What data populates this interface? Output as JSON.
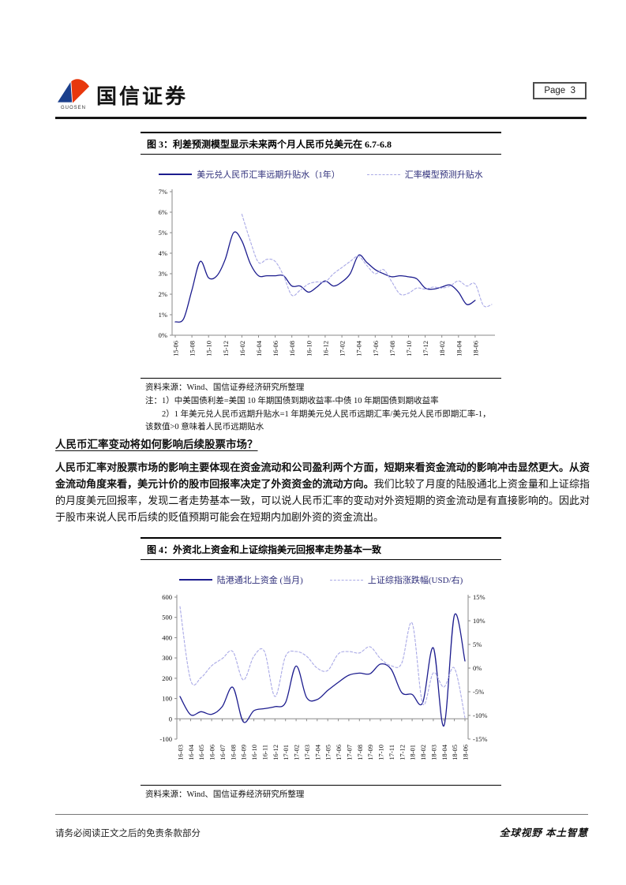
{
  "header": {
    "brand": "国信证券",
    "brand_sub": "GUOSEN",
    "logo_icon": "guosen-diamond-logo-icon",
    "page_label": "Page  3",
    "logo_blue": "#1b3f8c",
    "logo_red": "#e8380d"
  },
  "section": {
    "heading": "人民币汇率变动将如何影响后续股票市场？",
    "para_bold": "人民币汇率对股票市场的影响主要体现在资金流动和公司盈利两个方面，短期来看资金流动的影响冲击显然更大。从资金流动角度来看，美元计价的股市回报率决定了外资资金的流动方向。",
    "para_rest": "我们比较了月度的陆股通北上资金量和上证综指的月度美元回报率，发现二者走势基本一致，可以说人民币汇率的变动对外资短期的资金流动是有直接影响的。因此对于股市来说人民币后续的贬值预期可能会在短期内加剧外资的资金流出。"
  },
  "figures": {
    "fig3": {
      "source": "资料来源：Wind、国信证券经济研究所整理",
      "note1": "注：1）中美国债利差=美国 10 年期国债到期收益率-中债 10 年期国债到期收益率",
      "note2": "2）1 年美元兑人民币远期升贴水=1 年期美元兑人民币远期汇率/美元兑人民币即期汇率-1，该数值>0 意味着人民币远期贴水"
    },
    "fig4": {
      "source": "资料来源：Wind、国信证券经济研究所整理"
    }
  },
  "footer": {
    "left": "请务必阅读正文之后的免责条款部分",
    "right": "全球视野 本土智慧"
  },
  "chart_data": [
    {
      "type": "line",
      "title": "图 3：利差预测模型显示未来两个月人民币兑美元在 6.7-6.8",
      "categories": [
        "15-06",
        "15-07",
        "15-08",
        "15-09",
        "15-10",
        "15-11",
        "15-12",
        "16-01",
        "16-02",
        "16-03",
        "16-04",
        "16-05",
        "16-06",
        "16-07",
        "16-08",
        "16-09",
        "16-10",
        "16-11",
        "16-12",
        "17-01",
        "17-02",
        "17-03",
        "17-04",
        "17-05",
        "17-06",
        "17-07",
        "17-08",
        "17-09",
        "17-10",
        "17-11",
        "17-12",
        "18-01",
        "18-02",
        "18-03",
        "18-04",
        "18-05",
        "18-06"
      ],
      "x_label_every": 2,
      "x_extra": 2,
      "grid": false,
      "legend_position": "top",
      "y_left": {
        "min": 0,
        "max": 7,
        "ticks": [
          0,
          1,
          2,
          3,
          4,
          5,
          6,
          7
        ],
        "labels": [
          "0%",
          "1%",
          "2%",
          "3%",
          "4%",
          "5%",
          "6%",
          "7%"
        ]
      },
      "series": [
        {
          "name": "美元兑人民币汇率远期升贴水（1年）",
          "style": "solid",
          "color": "#1c1c8e",
          "axis": "left",
          "x_start": 0,
          "values": [
            0.65,
            0.8,
            2.2,
            3.6,
            2.8,
            2.9,
            3.7,
            5.0,
            4.6,
            3.5,
            2.9,
            2.9,
            2.9,
            2.9,
            2.4,
            2.4,
            2.1,
            2.35,
            2.65,
            2.4,
            2.6,
            3.0,
            3.9,
            3.55,
            3.2,
            3.0,
            2.85,
            2.9,
            2.85,
            2.75,
            2.3,
            2.25,
            2.35,
            2.45,
            2.1,
            1.5,
            1.7
          ]
        },
        {
          "name": "汇率模型预测升贴水",
          "style": "dashed",
          "color": "#a9a9e6",
          "axis": "left",
          "x_start": 8,
          "values": [
            5.9,
            4.6,
            3.55,
            3.7,
            3.6,
            2.9,
            1.95,
            2.2,
            2.5,
            2.6,
            2.6,
            3.0,
            3.3,
            3.6,
            3.85,
            3.4,
            3.0,
            3.2,
            2.6,
            2.0,
            2.05,
            2.3,
            2.25,
            2.35,
            2.3,
            2.4,
            2.65,
            2.4,
            2.5,
            1.45,
            1.5
          ]
        }
      ]
    },
    {
      "type": "line",
      "title": "图 4：外资北上资金和上证综指美元回报率走势基本一致",
      "categories": [
        "16-03",
        "16-04",
        "16-05",
        "16-06",
        "16-07",
        "16-08",
        "16-09",
        "16-10",
        "16-11",
        "16-12",
        "17-01",
        "17-02",
        "17-03",
        "17-04",
        "17-05",
        "17-06",
        "17-07",
        "17-08",
        "17-09",
        "17-10",
        "17-11",
        "17-12",
        "18-01",
        "18-02",
        "18-03",
        "18-04",
        "18-05",
        "18-06"
      ],
      "x_label_every": 1,
      "x_axis_at": 0,
      "grid": false,
      "legend_position": "top",
      "y_left": {
        "min": -100,
        "max": 600,
        "ticks": [
          -100,
          0,
          100,
          200,
          300,
          400,
          500,
          600
        ],
        "labels": [
          "-100",
          "0",
          "100",
          "200",
          "300",
          "400",
          "500",
          "600"
        ]
      },
      "y_right": {
        "min": -15,
        "max": 15,
        "ticks": [
          -15,
          -10,
          -5,
          0,
          5,
          10,
          15
        ],
        "labels": [
          "-15%",
          "-10%",
          "-5%",
          "0%",
          "5%",
          "10%",
          "15%"
        ]
      },
      "series": [
        {
          "name": "陆港通北上资金 (当月)",
          "style": "solid",
          "color": "#1c1c8e",
          "axis": "left",
          "x_start": 0,
          "values": [
            110,
            20,
            35,
            22,
            60,
            155,
            -15,
            40,
            50,
            60,
            80,
            260,
            105,
            95,
            140,
            180,
            215,
            225,
            222,
            270,
            245,
            130,
            120,
            80,
            350,
            -35,
            510,
            285
          ]
        },
        {
          "name": "上证综指涨跌幅(USD/右)",
          "style": "dashed",
          "color": "#a9a9e6",
          "axis": "right",
          "x_start": 0,
          "values": [
            13,
            -2.5,
            -2,
            0.5,
            2,
            3.5,
            -2.5,
            2.5,
            3.5,
            -6,
            2.5,
            3.5,
            2.5,
            0,
            -0.5,
            3,
            3.5,
            3.2,
            4.5,
            2,
            0.5,
            1,
            9.5,
            -7.5,
            -1,
            -4,
            0,
            -10.5
          ]
        }
      ]
    }
  ]
}
